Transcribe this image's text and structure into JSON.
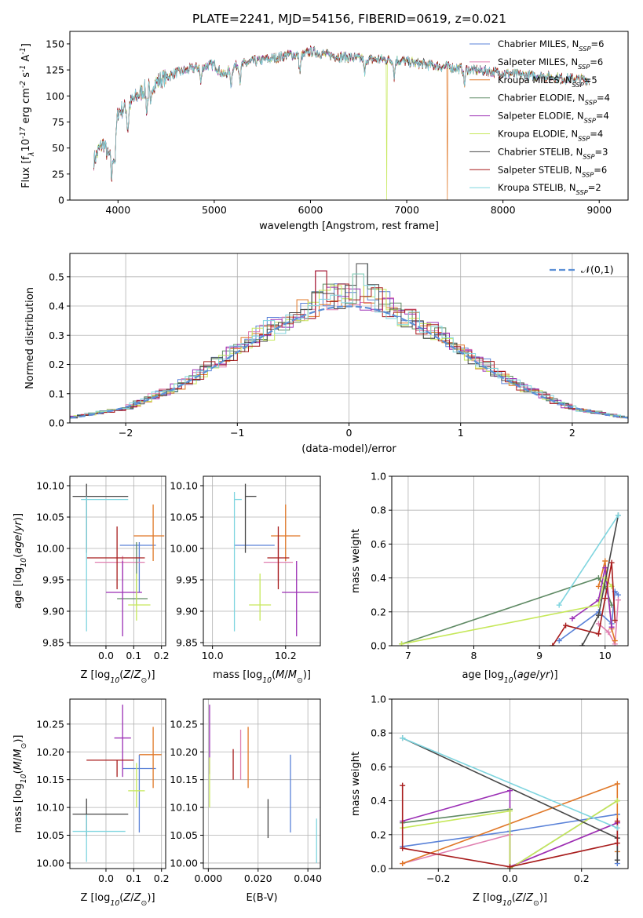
{
  "figure": {
    "title": "PLATE=2241, MJD=54156, FIBERID=0619, z=0.021"
  },
  "fits": [
    {
      "label": "Chabrier MILES, N$_{SSP}$=6",
      "color": "#5a82d8"
    },
    {
      "label": "Salpeter MILES, N$_{SSP}$=6",
      "color": "#e07fb0"
    },
    {
      "label": "Kroupa MILES, N$_{SSP}$=5",
      "color": "#e07828"
    },
    {
      "label": "Chabrier ELODIE, N$_{SSP}$=4",
      "color": "#5f8a64"
    },
    {
      "label": "Salpeter ELODIE, N$_{SSP}$=4",
      "color": "#9b2fb5"
    },
    {
      "label": "Kroupa ELODIE, N$_{SSP}$=4",
      "color": "#c6e85a"
    },
    {
      "label": "Chabrier STELIB, N$_{SSP}$=3",
      "color": "#474747"
    },
    {
      "label": "Salpeter STELIB, N$_{SSP}$=6",
      "color": "#a81c1c"
    },
    {
      "label": "Kroupa STELIB, N$_{SSP}$=2",
      "color": "#7fd5df"
    }
  ],
  "chart_data": [
    {
      "id": "spectrum",
      "type": "line",
      "xlabel": "wavelength [Angstrom, rest frame]",
      "ylabel": "Flux [f$_\\lambda$10$^{-17}$ erg cm$^{-2}$ s$^{-1}$ A$^{-1}$]",
      "xlim": [
        3500,
        9300
      ],
      "ylim": [
        0,
        162
      ],
      "xticks": [
        4000,
        5000,
        6000,
        7000,
        8000,
        9000
      ],
      "yticks": [
        0,
        25,
        50,
        75,
        100,
        125,
        150
      ],
      "legend": "upper-right",
      "continuum_x": [
        3750,
        3800,
        3850,
        3900,
        3950,
        4000,
        4100,
        4200,
        4300,
        4400,
        4500,
        4600,
        4800,
        5000,
        5100,
        5200,
        5400,
        5600,
        5800,
        5900,
        6000,
        6200,
        6400,
        6600,
        6800,
        7000,
        7200,
        7400,
        7600,
        7800,
        8000,
        8200,
        8400,
        8600,
        8800,
        8900
      ],
      "continuum_y": [
        38,
        48,
        55,
        42,
        45,
        85,
        90,
        100,
        108,
        113,
        118,
        122,
        127,
        130,
        120,
        128,
        133,
        136,
        140,
        138,
        143,
        139,
        137,
        135,
        135,
        133,
        130,
        128,
        126,
        124,
        122,
        120,
        119,
        117,
        116,
        115
      ],
      "dropouts": [
        {
          "x": 3920,
          "series": 5
        },
        {
          "x": 6790,
          "series": 5
        },
        {
          "x": 7420,
          "series": 2
        }
      ]
    },
    {
      "id": "residuals",
      "type": "step",
      "xlabel": "(data-model)/error",
      "ylabel": "Normed distribution",
      "xlim": [
        -2.5,
        2.5
      ],
      "ylim": [
        0,
        0.58
      ],
      "xticks": [
        -2,
        -1,
        0,
        1,
        2
      ],
      "yticks": [
        0.0,
        0.1,
        0.2,
        0.3,
        0.4,
        0.5
      ],
      "reference_label": "$\\mathcal{N}(0,1)$",
      "bin_width": 0.1,
      "envelope_x": [
        -2.5,
        -2.0,
        -1.5,
        -1.0,
        -0.5,
        -0.2,
        0.0,
        0.2,
        0.5,
        1.0,
        1.5,
        2.0,
        2.5
      ],
      "envelope_y": [
        0.018,
        0.05,
        0.13,
        0.25,
        0.37,
        0.43,
        0.44,
        0.43,
        0.37,
        0.25,
        0.13,
        0.05,
        0.018
      ],
      "peaks": [
        {
          "x": 0.15,
          "y": 0.545
        },
        {
          "x": -0.25,
          "y": 0.52
        },
        {
          "x": 0.05,
          "y": 0.51
        }
      ]
    },
    {
      "id": "age_vs_z",
      "type": "errorbar",
      "xlabel": "Z [log$_{10}$($Z/Z_\\odot$)]",
      "ylabel": "age  [log$_{10}$($age/yr$)]",
      "xlim": [
        -0.13,
        0.215
      ],
      "ylim": [
        9.845,
        10.115
      ],
      "xticks": [
        0.0,
        0.1,
        0.2
      ],
      "yticks": [
        9.85,
        9.9,
        9.95,
        10.0,
        10.05,
        10.1
      ],
      "points": [
        {
          "series": 0,
          "x": 0.12,
          "y": 10.005,
          "xerr": [
            0.07,
            0.06
          ],
          "yerr": [
            0.075,
            0.005
          ]
        },
        {
          "series": 1,
          "x": 0.06,
          "y": 9.978,
          "xerr": [
            0.1,
            0.08
          ],
          "yerr": [
            0.03,
            0.01
          ]
        },
        {
          "series": 2,
          "x": 0.17,
          "y": 10.02,
          "xerr": [
            0.07,
            0.04
          ],
          "yerr": [
            0.04,
            0.05
          ]
        },
        {
          "series": 3,
          "x": 0.11,
          "y": 9.92,
          "xerr": [
            0.07,
            0.04
          ],
          "yerr": [
            0.01,
            0.09
          ]
        },
        {
          "series": 4,
          "x": 0.06,
          "y": 9.93,
          "xerr": [
            0.06,
            0.07
          ],
          "yerr": [
            0.07,
            0.05
          ]
        },
        {
          "series": 5,
          "x": 0.11,
          "y": 9.91,
          "xerr": [
            0.03,
            0.05
          ],
          "yerr": [
            0.025,
            0.05
          ]
        },
        {
          "series": 6,
          "x": -0.07,
          "y": 10.083,
          "xerr": [
            0.05,
            0.15
          ],
          "yerr": [
            0.09,
            0.02
          ]
        },
        {
          "series": 7,
          "x": 0.04,
          "y": 9.985,
          "xerr": [
            0.11,
            0.1
          ],
          "yerr": [
            0.05,
            0.05
          ]
        },
        {
          "series": 8,
          "x": -0.07,
          "y": 10.078,
          "xerr": [
            0.02,
            0.15
          ],
          "yerr": [
            0.21,
            0.005
          ]
        }
      ]
    },
    {
      "id": "age_vs_mass",
      "type": "errorbar",
      "xlabel": "mass [log$_{10}$($M/M_\\odot$)]",
      "ylabel": "",
      "xlim": [
        9.975,
        10.295
      ],
      "ylim": [
        9.845,
        10.115
      ],
      "xticks": [
        10.0,
        10.2
      ],
      "yticks": [
        9.85,
        9.9,
        9.95,
        10.0,
        10.05,
        10.1
      ],
      "points": [
        {
          "series": 0,
          "x": 10.17,
          "y": 10.005,
          "xerr": [
            0.11,
            0.0
          ],
          "yerr": [
            0.0,
            0.0
          ]
        },
        {
          "series": 1,
          "x": 10.18,
          "y": 9.978,
          "xerr": [
            0.04,
            0.04
          ],
          "yerr": [
            0.03,
            0.04
          ]
        },
        {
          "series": 2,
          "x": 10.2,
          "y": 10.02,
          "xerr": [
            0.04,
            0.04
          ],
          "yerr": [
            0.04,
            0.05
          ]
        },
        {
          "series": 3,
          "x": 10.15,
          "y": 9.92,
          "xerr": [
            0.0,
            0.0
          ],
          "yerr": [
            0.0,
            0.0
          ]
        },
        {
          "series": 4,
          "x": 10.23,
          "y": 9.93,
          "xerr": [
            0.04,
            0.06
          ],
          "yerr": [
            0.07,
            0.05
          ]
        },
        {
          "series": 5,
          "x": 10.13,
          "y": 9.91,
          "xerr": [
            0.03,
            0.03
          ],
          "yerr": [
            0.025,
            0.05
          ]
        },
        {
          "series": 6,
          "x": 10.09,
          "y": 10.083,
          "xerr": [
            0.0,
            0.03
          ],
          "yerr": [
            0.09,
            0.02
          ]
        },
        {
          "series": 7,
          "x": 10.18,
          "y": 9.985,
          "xerr": [
            0.03,
            0.03
          ],
          "yerr": [
            0.05,
            0.05
          ]
        },
        {
          "series": 8,
          "x": 10.06,
          "y": 10.078,
          "xerr": [
            0.0,
            0.02
          ],
          "yerr": [
            0.21,
            0.012
          ]
        }
      ]
    },
    {
      "id": "weight_vs_age",
      "type": "line",
      "xlabel": "age  [log$_{10}$($age/yr$)]",
      "ylabel": "mass weight",
      "xlim": [
        6.75,
        10.35
      ],
      "ylim": [
        0,
        1.0
      ],
      "xticks": [
        7,
        8,
        9,
        10
      ],
      "yticks": [
        0.0,
        0.2,
        0.4,
        0.6,
        0.8,
        1.0
      ],
      "series": [
        {
          "series": 0,
          "x": [
            9.3,
            9.9,
            10.1,
            10.15,
            10.2
          ],
          "y": [
            0.03,
            0.2,
            0.13,
            0.32,
            0.3
          ]
        },
        {
          "series": 1,
          "x": [
            9.9,
            10.05,
            10.15,
            10.2
          ],
          "y": [
            0.13,
            0.08,
            0.01,
            0.27
          ]
        },
        {
          "series": 2,
          "x": [
            9.9,
            10.0,
            10.1,
            10.15
          ],
          "y": [
            0.35,
            0.5,
            0.1,
            0.03
          ]
        },
        {
          "series": 3,
          "x": [
            6.9,
            9.9,
            10.0,
            10.1
          ],
          "y": [
            0.01,
            0.4,
            0.35,
            0.24
          ]
        },
        {
          "series": 4,
          "x": [
            9.5,
            9.9,
            10.0,
            10.1
          ],
          "y": [
            0.16,
            0.27,
            0.46,
            0.11
          ]
        },
        {
          "series": 5,
          "x": [
            6.9,
            9.9,
            10.0,
            10.1
          ],
          "y": [
            0.01,
            0.24,
            0.4,
            0.35
          ]
        },
        {
          "series": 6,
          "x": [
            9.65,
            9.9,
            10.2
          ],
          "y": [
            0.0,
            0.18,
            0.77
          ]
        },
        {
          "series": 7,
          "x": [
            9.2,
            9.4,
            9.9,
            10.0,
            10.1,
            10.15
          ],
          "y": [
            0.0,
            0.12,
            0.07,
            0.28,
            0.49,
            0.15
          ]
        },
        {
          "series": 8,
          "x": [
            9.3,
            10.2
          ],
          "y": [
            0.24,
            0.77
          ]
        }
      ]
    },
    {
      "id": "mass_vs_z",
      "type": "errorbar",
      "xlabel": "Z [log$_{10}$($Z/Z_\\odot$)]",
      "ylabel": "mass [log$_{10}$($M/M_\\odot$)]",
      "xlim": [
        -0.13,
        0.215
      ],
      "ylim": [
        9.99,
        10.295
      ],
      "xticks": [
        0.0,
        0.1,
        0.2
      ],
      "yticks": [
        10.0,
        10.05,
        10.1,
        10.15,
        10.2,
        10.25
      ],
      "points": [
        {
          "series": 0,
          "x": 0.12,
          "y": 10.17,
          "xerr": [
            0.06,
            0.06
          ],
          "yerr": [
            0.115,
            0.025
          ]
        },
        {
          "series": 1,
          "x": 0.06,
          "y": 10.185,
          "xerr": [
            0.0,
            0.0
          ],
          "yerr": [
            0.0,
            0.0
          ]
        },
        {
          "series": 2,
          "x": 0.17,
          "y": 10.195,
          "xerr": [
            0.05,
            0.03
          ],
          "yerr": [
            0.06,
            0.05
          ]
        },
        {
          "series": 3,
          "x": 0.1,
          "y": 10.15,
          "xerr": [
            0.0,
            0.0
          ],
          "yerr": [
            0.0,
            0.0
          ]
        },
        {
          "series": 4,
          "x": 0.06,
          "y": 10.225,
          "xerr": [
            0.03,
            0.03
          ],
          "yerr": [
            0.07,
            0.06
          ]
        },
        {
          "series": 5,
          "x": 0.11,
          "y": 10.13,
          "xerr": [
            0.03,
            0.03
          ],
          "yerr": [
            0.03,
            0.05
          ]
        },
        {
          "series": 6,
          "x": -0.07,
          "y": 10.088,
          "xerr": [
            0.05,
            0.15
          ],
          "yerr": [
            0.04,
            0.028
          ]
        },
        {
          "series": 7,
          "x": 0.04,
          "y": 10.185,
          "xerr": [
            0.11,
            0.06
          ],
          "yerr": [
            0.03,
            0.0
          ]
        },
        {
          "series": 8,
          "x": -0.07,
          "y": 10.057,
          "xerr": [
            0.05,
            0.14
          ],
          "yerr": [
            0.055,
            0.03
          ]
        }
      ]
    },
    {
      "id": "mass_vs_ebv",
      "type": "errorbar",
      "xlabel": "E(B-V)",
      "ylabel": "",
      "xlim": [
        -0.002,
        0.045
      ],
      "ylim": [
        9.99,
        10.295
      ],
      "xticks": [
        0.0,
        0.02,
        0.04
      ],
      "yticks": [
        10.0,
        10.05,
        10.1,
        10.15,
        10.2,
        10.25
      ],
      "points": [
        {
          "series": 0,
          "x": 0.033,
          "y": 10.13,
          "xerr": [
            0,
            0
          ],
          "yerr": [
            0.075,
            0.065
          ]
        },
        {
          "series": 1,
          "x": 0.013,
          "y": 10.19,
          "xerr": [
            0,
            0
          ],
          "yerr": [
            0.04,
            0.05
          ]
        },
        {
          "series": 2,
          "x": 0.016,
          "y": 10.19,
          "xerr": [
            0,
            0
          ],
          "yerr": [
            0.055,
            0.055
          ]
        },
        {
          "series": 4,
          "x": 0.0005,
          "y": 10.22,
          "xerr": [
            0,
            0
          ],
          "yerr": [
            0.06,
            0.065
          ]
        },
        {
          "series": 5,
          "x": 0.0005,
          "y": 10.14,
          "xerr": [
            0,
            0
          ],
          "yerr": [
            0.04,
            0.05
          ]
        },
        {
          "series": 6,
          "x": 0.024,
          "y": 10.085,
          "xerr": [
            0,
            0
          ],
          "yerr": [
            0.04,
            0.03
          ]
        },
        {
          "series": 7,
          "x": 0.01,
          "y": 10.18,
          "xerr": [
            0,
            0
          ],
          "yerr": [
            0.03,
            0.025
          ]
        },
        {
          "series": 8,
          "x": 0.0435,
          "y": 10.04,
          "xerr": [
            0,
            0
          ],
          "yerr": [
            0.04,
            0.04
          ]
        }
      ]
    },
    {
      "id": "weight_vs_z",
      "type": "line",
      "xlabel": "Z [log$_{10}$($Z/Z_\\odot$)]",
      "ylabel": "mass weight",
      "xlim": [
        -0.33,
        0.33
      ],
      "ylim": [
        0,
        1.0
      ],
      "xticks": [
        -0.2,
        0.0,
        0.2
      ],
      "yticks": [
        0.0,
        0.2,
        0.4,
        0.6,
        0.8,
        1.0
      ],
      "series": [
        {
          "series": 0,
          "x": [
            -0.3,
            0.0,
            0.3,
            0.3
          ],
          "y": [
            0.13,
            0.22,
            0.32,
            0.03
          ]
        },
        {
          "series": 1,
          "x": [
            -0.3,
            0.0,
            0.0,
            0.3
          ],
          "y": [
            0.03,
            0.2,
            0.01,
            0.27
          ]
        },
        {
          "series": 2,
          "x": [
            -0.3,
            0.3,
            0.3
          ],
          "y": [
            0.03,
            0.5,
            0.1
          ]
        },
        {
          "series": 3,
          "x": [
            -0.3,
            0.0,
            0.0,
            0.3
          ],
          "y": [
            0.27,
            0.35,
            0.0,
            0.4
          ]
        },
        {
          "series": 4,
          "x": [
            -0.3,
            0.0,
            0.0,
            0.3
          ],
          "y": [
            0.28,
            0.46,
            0.01,
            0.27
          ]
        },
        {
          "series": 5,
          "x": [
            -0.3,
            0.0,
            0.0,
            0.3
          ],
          "y": [
            0.24,
            0.34,
            0.0,
            0.4
          ]
        },
        {
          "series": 6,
          "x": [
            -0.3,
            0.3,
            0.3
          ],
          "y": [
            0.77,
            0.18,
            0.05
          ]
        },
        {
          "series": 7,
          "x": [
            -0.3,
            -0.3,
            0.0,
            0.3,
            0.3
          ],
          "y": [
            0.49,
            0.12,
            0.01,
            0.15,
            0.28
          ]
        },
        {
          "series": 8,
          "x": [
            -0.3,
            0.3
          ],
          "y": [
            0.77,
            0.24
          ]
        }
      ]
    }
  ]
}
